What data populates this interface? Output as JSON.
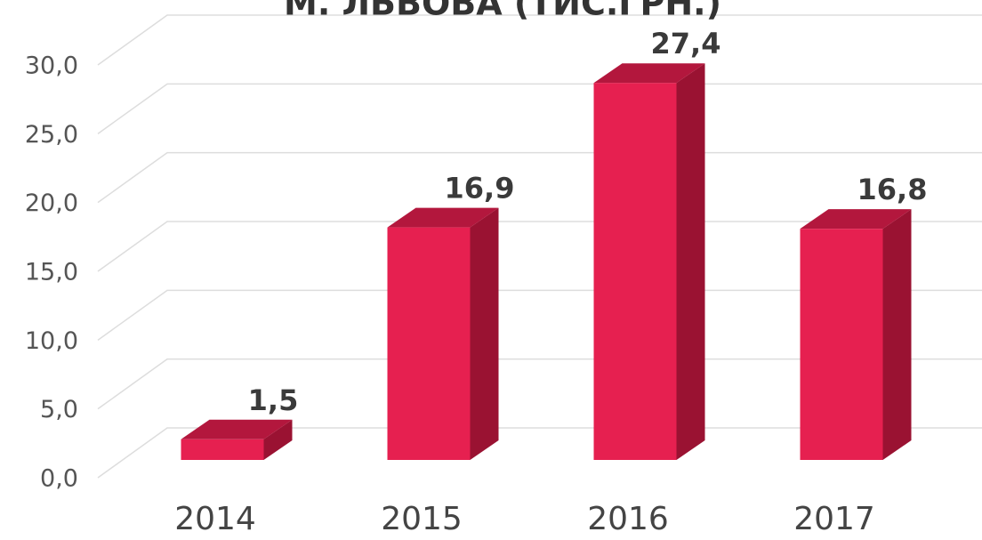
{
  "chart_data": {
    "type": "bar3d",
    "title": "М. ЛЬВОВА (ТИС.ГРН.)",
    "categories": [
      "2014",
      "2015",
      "2016",
      "2017"
    ],
    "values": [
      1.5,
      16.9,
      27.4,
      16.8
    ],
    "value_labels": [
      "1,5",
      "16,9",
      "27,4",
      "16,8"
    ],
    "color": "#e62050",
    "ylim": [
      0,
      30
    ],
    "yticks": [
      {
        "value": 0,
        "label": "0,0"
      },
      {
        "value": 5,
        "label": "5,0"
      },
      {
        "value": 10,
        "label": "10,0"
      },
      {
        "value": 15,
        "label": "15,0"
      },
      {
        "value": 20,
        "label": "20,0"
      },
      {
        "value": 25,
        "label": "25,0"
      },
      {
        "value": 30,
        "label": "30,0"
      }
    ],
    "grid": true
  }
}
